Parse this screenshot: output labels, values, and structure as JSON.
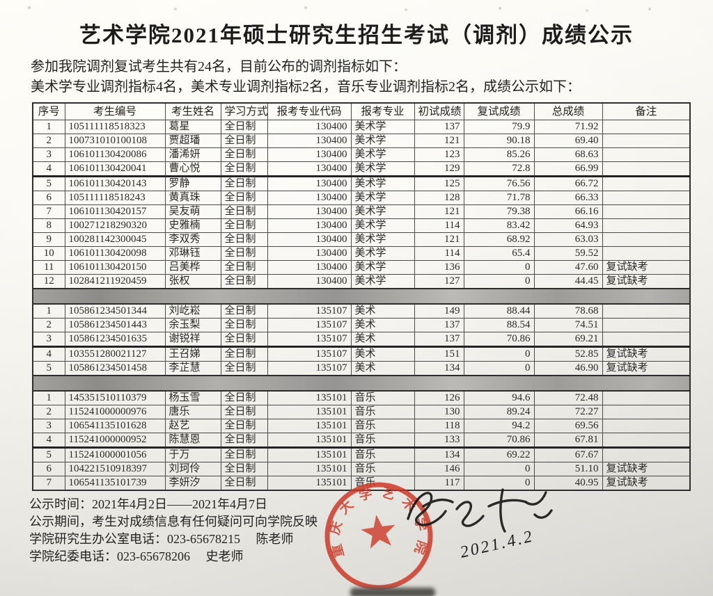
{
  "document": {
    "title": "艺术学院2021年硕士研究生招生考试（调剂）成绩公示",
    "intro_lines": [
      "参加我院调剂复试考生共有24名，目前公布的调剂指标如下：",
      "美术学专业调剂指标4名，美术专业调剂指标2名，音乐专业调剂指标2名，成绩公示如下："
    ]
  },
  "table": {
    "headers": [
      "序号",
      "考生编号",
      "考生姓名",
      "学习方式",
      "报考专业代码",
      "报考专业",
      "初试成绩",
      "复试成绩",
      "总成绩",
      "备注"
    ],
    "sections": [
      {
        "major": "美术学",
        "heavy_divider_before_row_index": 4,
        "rows": [
          [
            "1",
            "105111118518323",
            "葛星",
            "全日制",
            "130400",
            "美术学",
            "137",
            "79.9",
            "71.92",
            ""
          ],
          [
            "2",
            "100731010100108",
            "贾超璠",
            "全日制",
            "130400",
            "美术学",
            "121",
            "90.18",
            "69.40",
            ""
          ],
          [
            "3",
            "106101130420086",
            "潘浠妍",
            "全日制",
            "130400",
            "美术学",
            "123",
            "85.26",
            "68.63",
            ""
          ],
          [
            "4",
            "106101130420041",
            "曹心悦",
            "全日制",
            "130400",
            "美术学",
            "129",
            "72.8",
            "66.99",
            ""
          ],
          [
            "5",
            "106101130420143",
            "罗静",
            "全日制",
            "130400",
            "美术学",
            "125",
            "76.56",
            "66.72",
            ""
          ],
          [
            "6",
            "105111118518243",
            "黄真珠",
            "全日制",
            "130400",
            "美术学",
            "128",
            "71.78",
            "66.33",
            ""
          ],
          [
            "7",
            "106101130420157",
            "吴友萌",
            "全日制",
            "130400",
            "美术学",
            "121",
            "79.38",
            "66.16",
            ""
          ],
          [
            "8",
            "100271218290320",
            "史雅楠",
            "全日制",
            "130400",
            "美术学",
            "114",
            "83.42",
            "64.93",
            ""
          ],
          [
            "9",
            "100281142300045",
            "李双秀",
            "全日制",
            "130400",
            "美术学",
            "121",
            "68.92",
            "63.03",
            ""
          ],
          [
            "10",
            "106101130420098",
            "邓琳钰",
            "全日制",
            "130400",
            "美术学",
            "114",
            "65.4",
            "59.52",
            ""
          ],
          [
            "11",
            "106101130420150",
            "吕美桦",
            "全日制",
            "130400",
            "美术学",
            "136",
            "0",
            "47.60",
            "复试缺考"
          ],
          [
            "12",
            "102841211920459",
            "张权",
            "全日制",
            "130400",
            "美术学",
            "127",
            "0",
            "44.45",
            "复试缺考"
          ]
        ]
      },
      {
        "major": "美术",
        "heavy_divider_before_row_index": 3,
        "rows": [
          [
            "1",
            "105861234501344",
            "刘屹崧",
            "全日制",
            "135107",
            "美术",
            "149",
            "88.44",
            "78.68",
            ""
          ],
          [
            "2",
            "105861234501443",
            "余玉梨",
            "全日制",
            "135107",
            "美术",
            "137",
            "88.54",
            "74.51",
            ""
          ],
          [
            "3",
            "105861234501635",
            "谢锐祥",
            "全日制",
            "135107",
            "美术",
            "137",
            "70.86",
            "69.21",
            ""
          ],
          [
            "4",
            "103551280021127",
            "王召娣",
            "全日制",
            "135107",
            "美术",
            "151",
            "0",
            "52.85",
            "复试缺考"
          ],
          [
            "5",
            "105861234501458",
            "李芷慧",
            "全日制",
            "135107",
            "美术",
            "134",
            "0",
            "46.90",
            "复试缺考"
          ]
        ]
      },
      {
        "major": "音乐",
        "heavy_divider_before_row_index": 4,
        "rows": [
          [
            "1",
            "145351510110379",
            "杨玉雪",
            "全日制",
            "135101",
            "音乐",
            "126",
            "94.6",
            "72.48",
            ""
          ],
          [
            "2",
            "115241000000976",
            "唐乐",
            "全日制",
            "135101",
            "音乐",
            "130",
            "89.24",
            "72.27",
            ""
          ],
          [
            "3",
            "106541135101628",
            "赵艺",
            "全日制",
            "135101",
            "音乐",
            "118",
            "94.2",
            "69.56",
            ""
          ],
          [
            "4",
            "115241000000952",
            "陈慧恩",
            "全日制",
            "135101",
            "音乐",
            "133",
            "70.86",
            "67.81",
            ""
          ],
          [
            "5",
            "115241000001056",
            "于万",
            "全日制",
            "135101",
            "音乐",
            "134",
            "69.22",
            "67.67",
            ""
          ],
          [
            "6",
            "104221510918397",
            "刘珂伶",
            "全日制",
            "135101",
            "音乐",
            "146",
            "0",
            "51.10",
            "复试缺考"
          ],
          [
            "7",
            "106541135101739",
            "李妍汐",
            "全日制",
            "135101",
            "音乐",
            "117",
            "0",
            "40.95",
            "复试缺考"
          ]
        ]
      }
    ]
  },
  "footer": {
    "lines": [
      "公示时间：2021年4月2日——2021年4月7日",
      "公示期间，考生对成绩信息有任何疑问可向学院反映",
      "学院研究生办公室电话：023-65678215　 陈老师",
      "学院纪委电话：023-65678206　 史老师"
    ]
  },
  "stamp": {
    "text": "重庆大学艺术学院",
    "color": "#cc3523"
  },
  "signature": {
    "date": "2021.4.2",
    "ink_color": "#1a1a1a"
  }
}
